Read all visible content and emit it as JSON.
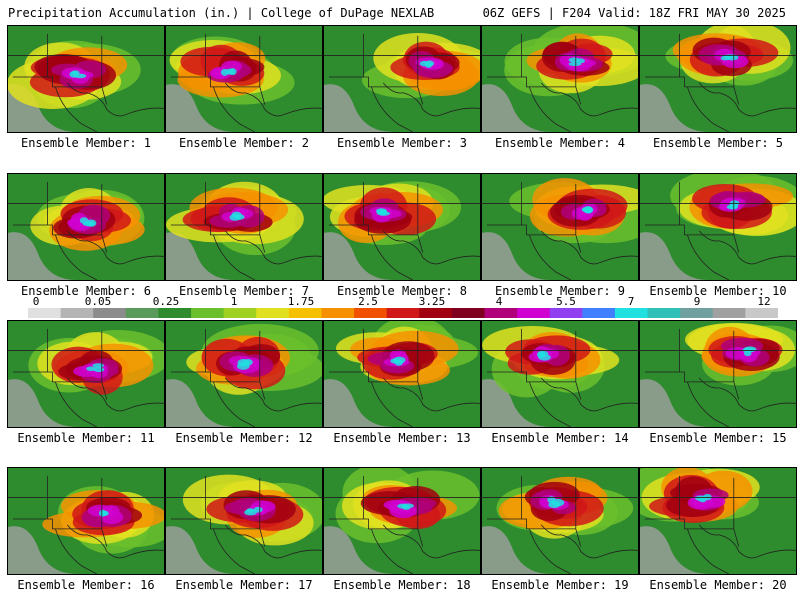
{
  "header": {
    "left": "Precipitation Accumulation (in.) | College of DuPage NEXLAB",
    "right": "06Z GEFS | F204 Valid: 18Z FRI MAY 30 2025"
  },
  "colorbar": {
    "tick_labels": [
      "0",
      "0.05",
      "0.25",
      "1",
      "1.75",
      "2.5",
      "3.25",
      "4",
      "5.5",
      "7",
      "9",
      "12"
    ],
    "colors": [
      "#e0e0e0",
      "#b4b4b4",
      "#8c8c8c",
      "#5a9a5a",
      "#2e8b2e",
      "#6bbf2b",
      "#a0d020",
      "#e0e020",
      "#f5c000",
      "#f59000",
      "#f05000",
      "#d01818",
      "#a00010",
      "#800020",
      "#b0007a",
      "#d000d0",
      "#9040f0",
      "#4080ff",
      "#20e0e0",
      "#30c0b8",
      "#70a0a0",
      "#a0a0a0",
      "#c8c8c8"
    ]
  },
  "members": [
    {
      "label": "Ensemble Member: 1"
    },
    {
      "label": "Ensemble Member: 2"
    },
    {
      "label": "Ensemble Member: 3"
    },
    {
      "label": "Ensemble Member: 4"
    },
    {
      "label": "Ensemble Member: 5"
    },
    {
      "label": "Ensemble Member: 6"
    },
    {
      "label": "Ensemble Member: 7"
    },
    {
      "label": "Ensemble Member: 8"
    },
    {
      "label": "Ensemble Member: 9"
    },
    {
      "label": "Ensemble Member: 10"
    },
    {
      "label": "Ensemble Member: 11"
    },
    {
      "label": "Ensemble Member: 12"
    },
    {
      "label": "Ensemble Member: 13"
    },
    {
      "label": "Ensemble Member: 14"
    },
    {
      "label": "Ensemble Member: 15"
    },
    {
      "label": "Ensemble Member: 16"
    },
    {
      "label": "Ensemble Member: 17"
    },
    {
      "label": "Ensemble Member: 18"
    },
    {
      "label": "Ensemble Member: 19"
    },
    {
      "label": "Ensemble Member: 20"
    }
  ]
}
